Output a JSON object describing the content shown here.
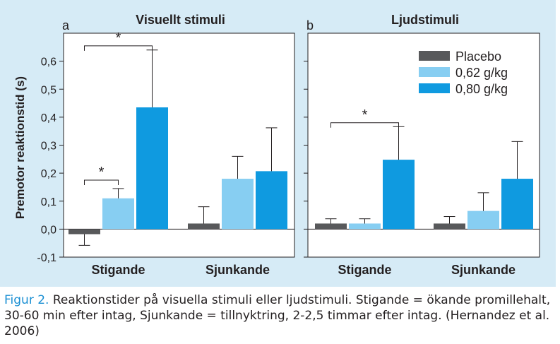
{
  "chart_data": [
    {
      "type": "bar",
      "panel_letter": "a",
      "title": "Visuellt stimuli",
      "ylabel": "Premotor reaktionstid (s)",
      "ylim": [
        -0.1,
        0.7
      ],
      "yticks": [
        -0.1,
        0.0,
        0.1,
        0.2,
        0.3,
        0.4,
        0.5,
        0.6
      ],
      "ytick_labels": [
        "-0,1",
        "0,0",
        "0,1",
        "0,2",
        "0,3",
        "0,4",
        "0,5",
        "0,6"
      ],
      "categories": [
        "Stigande",
        "Sjunkande"
      ],
      "series": [
        {
          "name": "Placebo",
          "values": [
            -0.018,
            0.02
          ],
          "errors": [
            0.04,
            0.06
          ]
        },
        {
          "name": "0,62 g/kg",
          "values": [
            0.11,
            0.18
          ],
          "errors": [
            0.035,
            0.08
          ]
        },
        {
          "name": "0,80 g/kg",
          "values": [
            0.435,
            0.207
          ],
          "errors": [
            0.205,
            0.155
          ]
        }
      ],
      "significance": [
        {
          "label": "*",
          "from_series": 0,
          "to_series": 1,
          "category": 0,
          "bracket_y": 0.175
        },
        {
          "label": "*",
          "from_series": 0,
          "to_series": 2,
          "category": 0,
          "bracket_y": 0.655
        }
      ]
    },
    {
      "type": "bar",
      "panel_letter": "b",
      "title": "Ljudstimuli",
      "ylim": [
        -0.1,
        0.7
      ],
      "categories": [
        "Stigande",
        "Sjunkande"
      ],
      "series": [
        {
          "name": "Placebo",
          "values": [
            0.02,
            0.02
          ],
          "errors": [
            0.017,
            0.025
          ]
        },
        {
          "name": "0,62 g/kg",
          "values": [
            0.02,
            0.065
          ],
          "errors": [
            0.017,
            0.065
          ]
        },
        {
          "name": "0,80 g/kg",
          "values": [
            0.248,
            0.18
          ],
          "errors": [
            0.118,
            0.133
          ]
        }
      ],
      "legend": {
        "placement": "top-right",
        "entries": [
          "Placebo",
          "0,62 g/kg",
          "0,80 g/kg"
        ]
      },
      "significance": [
        {
          "label": "*",
          "from_series": 0,
          "to_series": 2,
          "category": 0,
          "bracket_y": 0.38
        }
      ]
    }
  ],
  "colors": {
    "Placebo": "#58595b",
    "0,62 g/kg": "#87cef2",
    "0,80 g/kg": "#0f9ae0",
    "panel_background": "#d6ebf6",
    "caption_label": "#1a8fd3"
  },
  "caption": {
    "label": "Figur 2.",
    "text": " Reaktionstider på visuella stimuli eller ljudstimuli. Stigande = ökande promillehalt, 30-60 min efter intag, Sjunkande = tillnyktring, 2-2,5 timmar efter intag. (Hernandez et al. 2006)"
  }
}
